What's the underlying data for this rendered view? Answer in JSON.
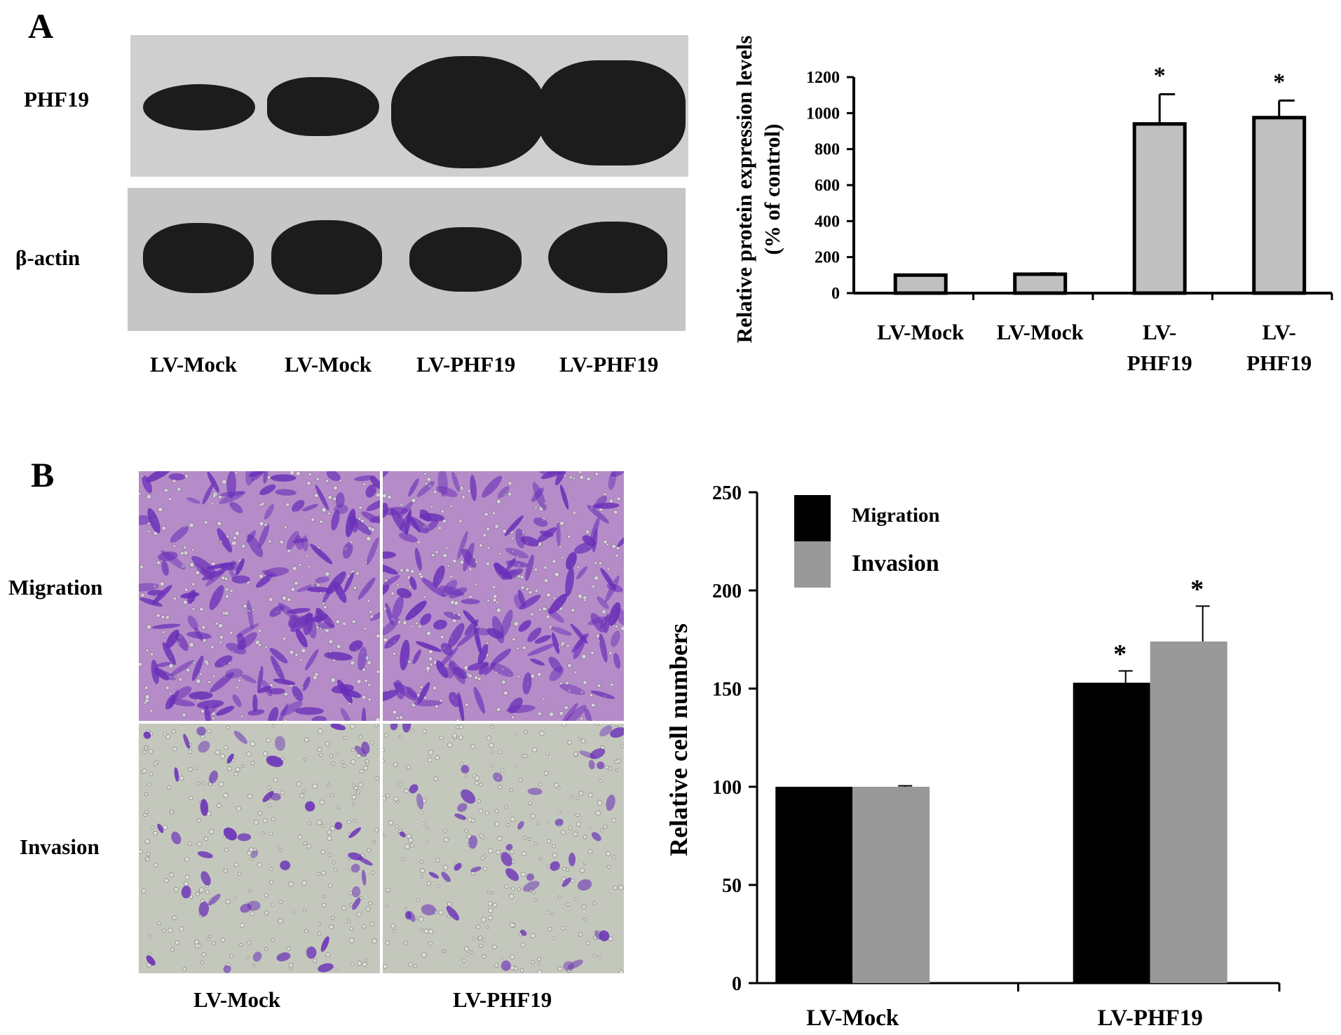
{
  "panel_a": {
    "letter": "A",
    "blot_row_labels": [
      "PHF19",
      "β-actin"
    ],
    "blot_lane_labels": [
      "LV-Mock",
      "LV-Mock",
      "LV-PHF19",
      "LV-PHF19"
    ]
  },
  "panel_b": {
    "letter": "B",
    "image_row_labels": [
      "Migration",
      "Invasion"
    ],
    "image_col_labels": [
      "LV-Mock",
      "LV-PHF19"
    ],
    "micro_colors": {
      "migration_bg": "#b58cc8",
      "invasion_bg": "#c4c8bc",
      "stain": "#6a2fb8"
    }
  },
  "chart_data": [
    {
      "type": "bar",
      "categories": [
        "LV-Mock",
        "LV-Mock",
        "LV-PHF19",
        "LV-PHF19"
      ],
      "category_lines": [
        [
          "LV-Mock"
        ],
        [
          "LV-Mock"
        ],
        [
          "LV-",
          "PHF19"
        ],
        [
          "LV-",
          "PHF19"
        ]
      ],
      "values": [
        100,
        105,
        940,
        975
      ],
      "errors": [
        0,
        5,
        165,
        95
      ],
      "significance": [
        "",
        "",
        "*",
        "*"
      ],
      "ylabel": "Relative protein expression levels",
      "ylabel2": "(% of control)",
      "ylim": [
        0,
        1200
      ],
      "yticks": [
        0,
        200,
        400,
        600,
        800,
        1000,
        1200
      ],
      "bar_color": "#c0c0c0",
      "grid": false
    },
    {
      "type": "bar",
      "categories": [
        "LV-Mock",
        "LV-PHF19"
      ],
      "series": [
        {
          "name": "Migration",
          "values": [
            100,
            153
          ],
          "errors": [
            0,
            6
          ],
          "significance": [
            "",
            "*"
          ],
          "color": "#000000"
        },
        {
          "name": "Invasion",
          "values": [
            100,
            174
          ],
          "errors": [
            0.5,
            18
          ],
          "significance": [
            "",
            "*"
          ],
          "color": "#999999"
        }
      ],
      "ylabel": "Relative cell numbers",
      "ylim": [
        0,
        250
      ],
      "yticks": [
        0,
        50,
        100,
        150,
        200,
        250
      ],
      "legend": "top-left",
      "grid": false
    }
  ]
}
